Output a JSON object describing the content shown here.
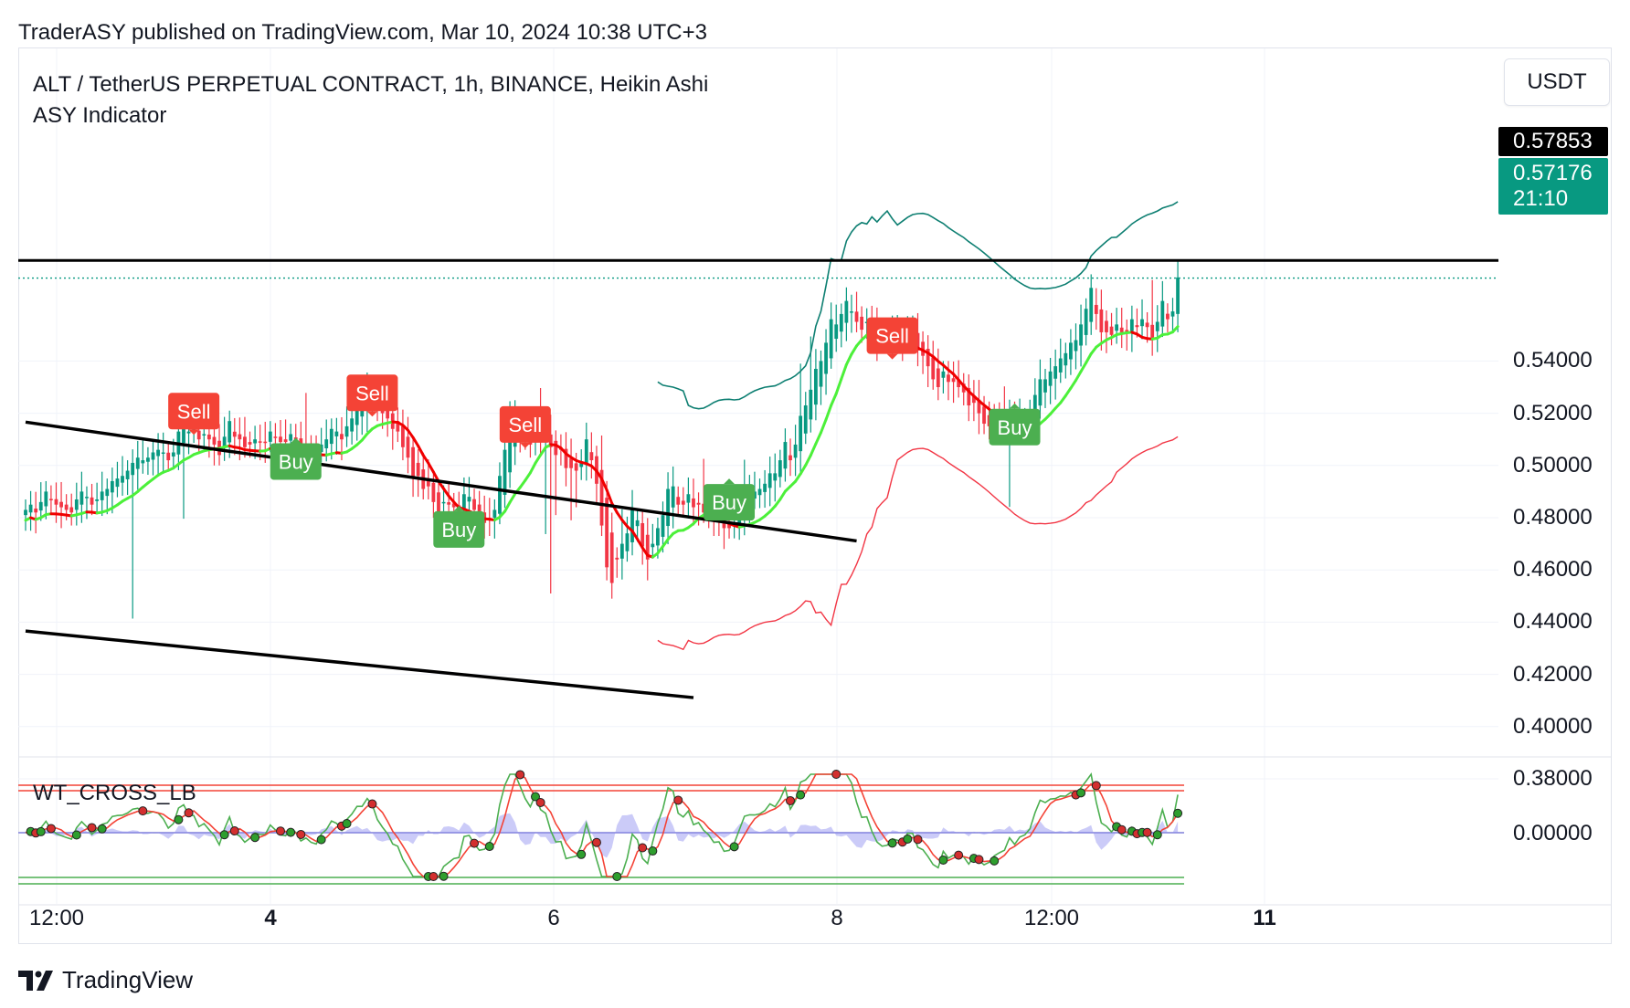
{
  "header": {
    "publish_line": "TraderASY published on TradingView.com, Mar 10, 2024 10:38 UTC+3"
  },
  "legend": {
    "symbol_line": "ALT / TetherUS PERPETUAL CONTRACT, 1h, BINANCE, Heikin Ashi",
    "indicator_line": "ASY Indicator"
  },
  "currency_button": "USDT",
  "sub_pane": {
    "label": "WT_CROSS_LB",
    "axis_label": "0.00000"
  },
  "footer": {
    "brand": "TradingView"
  },
  "price_tags": {
    "line_price": "0.57853",
    "last_price": "0.57176",
    "countdown": "21:10"
  },
  "colors": {
    "up": "#089981",
    "down": "#f23645",
    "ma_up": "#4cf03a",
    "ma_down": "#f00000",
    "band_upper": "#0e7f72",
    "band_lower": "#f23645",
    "buy_tag": "#4caf50",
    "sell_tag": "#f44336",
    "wt_green": "#4caf50",
    "wt_red": "#f44336",
    "wt_diff": "#8c8cf0"
  },
  "chart_data": {
    "type": "candlestick",
    "title": "ALT / TetherUS PERPETUAL CONTRACT, 1h, BINANCE, Heikin Ashi",
    "ylim": [
      0.37,
      0.595
    ],
    "y_ticks": [
      "0.54000",
      "0.52000",
      "0.50000",
      "0.48000",
      "0.46000",
      "0.44000",
      "0.42000",
      "0.40000",
      "0.38000"
    ],
    "x_ticks": [
      {
        "label": "12:00",
        "bold": false
      },
      {
        "label": "4",
        "bold": true
      },
      {
        "label": "6",
        "bold": false
      },
      {
        "label": "8",
        "bold": false
      },
      {
        "label": "12:00",
        "bold": false
      },
      {
        "label": "11",
        "bold": true
      }
    ],
    "horizontal_line": 0.57853,
    "last_price": 0.57176,
    "trend_lines": [
      {
        "from": [
          0,
          0.5166
        ],
        "to": [
          163,
          0.4711
        ]
      },
      {
        "from": [
          0,
          0.4366
        ],
        "to": [
          131,
          0.4111
        ]
      }
    ],
    "closes": [
      0.483,
      0.485,
      0.482,
      0.486,
      0.49,
      0.487,
      0.485,
      0.484,
      0.483,
      0.482,
      0.487,
      0.49,
      0.488,
      0.485,
      0.487,
      0.49,
      0.491,
      0.494,
      0.495,
      0.496,
      0.498,
      0.501,
      0.503,
      0.502,
      0.503,
      0.505,
      0.506,
      0.505,
      0.502,
      0.505,
      0.513,
      0.516,
      0.513,
      0.514,
      0.51,
      0.512,
      0.51,
      0.508,
      0.504,
      0.511,
      0.517,
      0.511,
      0.51,
      0.507,
      0.508,
      0.51,
      0.509,
      0.509,
      0.513,
      0.511,
      0.509,
      0.509,
      0.512,
      0.51,
      0.506,
      0.507,
      0.505,
      0.504,
      0.508,
      0.51,
      0.514,
      0.513,
      0.51,
      0.515,
      0.518,
      0.522,
      0.523,
      0.528,
      0.527,
      0.522,
      0.52,
      0.518,
      0.514,
      0.513,
      0.507,
      0.503,
      0.495,
      0.496,
      0.491,
      0.492,
      0.486,
      0.482,
      0.486,
      0.485,
      0.484,
      0.482,
      0.489,
      0.488,
      0.483,
      0.479,
      0.478,
      0.48,
      0.483,
      0.496,
      0.506,
      0.517,
      0.521,
      0.513,
      0.51,
      0.508,
      0.515,
      0.511,
      0.512,
      0.507,
      0.504,
      0.506,
      0.499,
      0.499,
      0.498,
      0.501,
      0.51,
      0.502,
      0.493,
      0.477,
      0.461,
      0.455,
      0.464,
      0.47,
      0.474,
      0.483,
      0.479,
      0.469,
      0.464,
      0.47,
      0.476,
      0.481,
      0.491,
      0.492,
      0.485,
      0.485,
      0.489,
      0.484,
      0.485,
      0.482,
      0.481,
      0.479,
      0.48,
      0.476,
      0.476,
      0.478,
      0.483,
      0.489,
      0.49,
      0.49,
      0.491,
      0.493,
      0.497,
      0.497,
      0.502,
      0.509,
      0.502,
      0.508,
      0.519,
      0.523,
      0.529,
      0.537,
      0.54,
      0.547,
      0.556,
      0.554,
      0.558,
      0.563,
      0.559,
      0.555,
      0.552,
      0.555,
      0.551,
      0.548,
      0.547,
      0.548,
      0.551,
      0.55,
      0.548,
      0.552,
      0.551,
      0.544,
      0.542,
      0.538,
      0.533,
      0.53,
      0.536,
      0.532,
      0.532,
      0.53,
      0.528,
      0.523,
      0.524,
      0.52,
      0.516,
      0.515,
      0.516,
      0.516,
      0.516,
      0.52,
      0.516,
      0.518,
      0.518,
      0.52,
      0.527,
      0.533,
      0.533,
      0.536,
      0.538,
      0.541,
      0.543,
      0.547,
      0.548,
      0.554,
      0.56,
      0.568,
      0.558,
      0.551,
      0.551,
      0.55,
      0.554,
      0.551,
      0.551,
      0.556,
      0.553,
      0.556,
      0.553,
      0.549,
      0.555,
      0.563,
      0.556,
      0.559,
      0.572
    ],
    "signals": [
      {
        "type": "Sell",
        "bar": 33,
        "price": 0.5208
      },
      {
        "type": "Buy",
        "bar": 53,
        "price": 0.5015
      },
      {
        "type": "Sell",
        "bar": 68,
        "price": 0.5278
      },
      {
        "type": "Buy",
        "bar": 85,
        "price": 0.4755
      },
      {
        "type": "Sell",
        "bar": 98,
        "price": 0.5157
      },
      {
        "type": "Buy",
        "bar": 138,
        "price": 0.4859
      },
      {
        "type": "Sell",
        "bar": 170,
        "price": 0.5497
      },
      {
        "type": "Buy",
        "bar": 194,
        "price": 0.5147
      }
    ],
    "sub_pane": {
      "name": "WT_CROSS_LB",
      "zero_label": "0.00000"
    }
  }
}
